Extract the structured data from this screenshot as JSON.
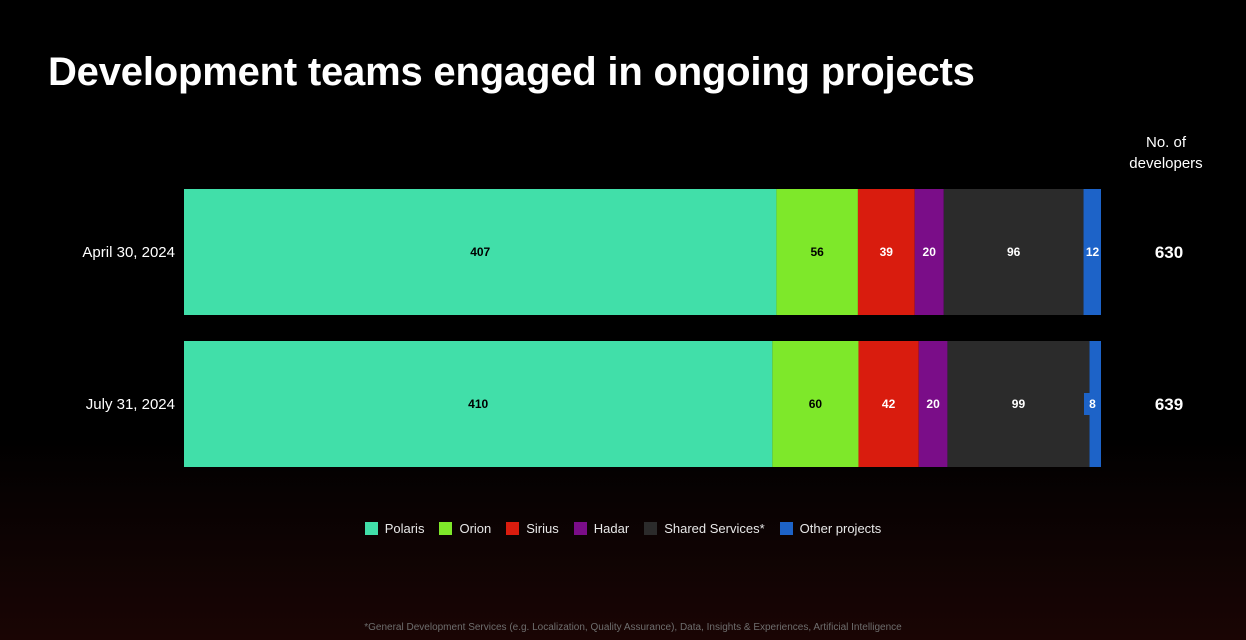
{
  "slide": {
    "title": "Development teams engaged in ongoing projects",
    "total_header": "No. of developers",
    "footnote": "*General Development Services (e.g. Localization, Quality Assurance), Data, Insights & Experiences, Artificial Intelligence"
  },
  "chart_data": {
    "type": "bar",
    "orientation": "horizontal",
    "stacked": true,
    "title": "Development teams engaged in ongoing projects",
    "categories": [
      "April 30, 2024",
      "July 31, 2024"
    ],
    "series": [
      {
        "name": "Polaris",
        "values": [
          407,
          410
        ],
        "color": "#41dfa9",
        "label_color": "#000000"
      },
      {
        "name": "Orion",
        "values": [
          56,
          60
        ],
        "color": "#7ee82a",
        "label_color": "#000000"
      },
      {
        "name": "Sirius",
        "values": [
          39,
          42
        ],
        "color": "#d91c0e",
        "label_color": "#ffffff"
      },
      {
        "name": "Hadar",
        "values": [
          20,
          20
        ],
        "color": "#7a0d88",
        "label_color": "#ffffff"
      },
      {
        "name": "Shared Services*",
        "values": [
          96,
          99
        ],
        "color": "#2b2b2b",
        "label_color": "#ffffff"
      },
      {
        "name": "Other projects",
        "values": [
          12,
          8
        ],
        "color": "#1d63c8",
        "label_color": "#ffffff"
      }
    ],
    "totals_label": "No. of developers",
    "totals": [
      630,
      639
    ],
    "legend_position": "bottom-center",
    "grid": false
  }
}
